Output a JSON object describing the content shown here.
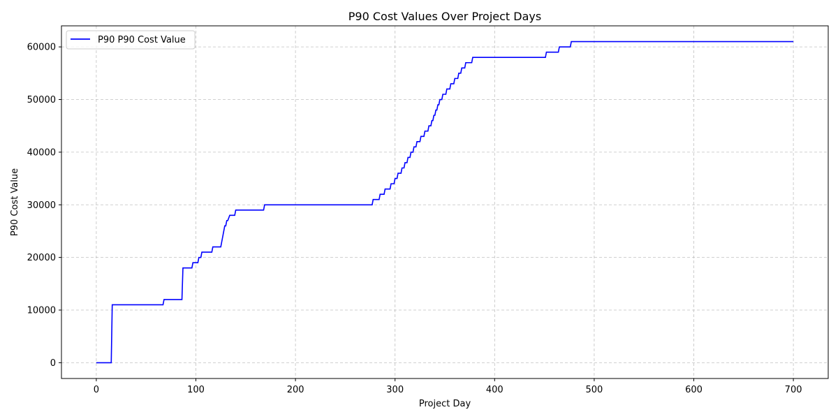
{
  "chart_data": {
    "type": "line",
    "title": "P90 Cost Values Over Project Days",
    "xlabel": "Project Day",
    "ylabel": "P90 Cost Value",
    "xlim": [
      -35,
      735
    ],
    "ylim": [
      -3000,
      64000
    ],
    "xticks": [
      0,
      100,
      200,
      300,
      400,
      500,
      600,
      700
    ],
    "yticks": [
      0,
      10000,
      20000,
      30000,
      40000,
      50000,
      60000
    ],
    "grid": true,
    "legend_position": "top-left",
    "series": [
      {
        "name": "P90 P90 Cost Value",
        "color": "#0000ff",
        "style": "step",
        "x": [
          0,
          15,
          16,
          67,
          68,
          86,
          87,
          96,
          97,
          102,
          103,
          105,
          106,
          116,
          117,
          125,
          126,
          127,
          128,
          129,
          130,
          131,
          132,
          134,
          135,
          139,
          140,
          168,
          169,
          277,
          278,
          284,
          285,
          289,
          290,
          295,
          296,
          299,
          300,
          302,
          303,
          306,
          307,
          309,
          310,
          312,
          313,
          315,
          316,
          318,
          319,
          321,
          322,
          325,
          326,
          329,
          330,
          333,
          334,
          336,
          337,
          338,
          339,
          340,
          341,
          342,
          343,
          344,
          345,
          347,
          348,
          351,
          352,
          355,
          356,
          359,
          360,
          363,
          364,
          366,
          367,
          370,
          371,
          373,
          374,
          377,
          378,
          386,
          387,
          451,
          452,
          464,
          465,
          476,
          477,
          700
        ],
        "y": [
          0,
          0,
          11000,
          11000,
          12000,
          12000,
          18000,
          18000,
          19000,
          19000,
          20000,
          20000,
          21000,
          21000,
          22000,
          22000,
          23000,
          24000,
          25000,
          26000,
          26000,
          27000,
          27000,
          28000,
          28000,
          28000,
          29000,
          29000,
          30000,
          30000,
          31000,
          31000,
          32000,
          32000,
          33000,
          33000,
          34000,
          34000,
          35000,
          35000,
          36000,
          36000,
          37000,
          37000,
          38000,
          38000,
          39000,
          39000,
          40000,
          40000,
          41000,
          41000,
          42000,
          42000,
          43000,
          43000,
          44000,
          44000,
          45000,
          45000,
          46000,
          46000,
          47000,
          47000,
          48000,
          48000,
          49000,
          49000,
          50000,
          50000,
          51000,
          51000,
          52000,
          52000,
          53000,
          53000,
          54000,
          54000,
          55000,
          55000,
          56000,
          56000,
          57000,
          57000,
          57000,
          57000,
          58000,
          58000,
          58000,
          58000,
          59000,
          59000,
          60000,
          60000,
          61000,
          61000
        ]
      }
    ]
  }
}
